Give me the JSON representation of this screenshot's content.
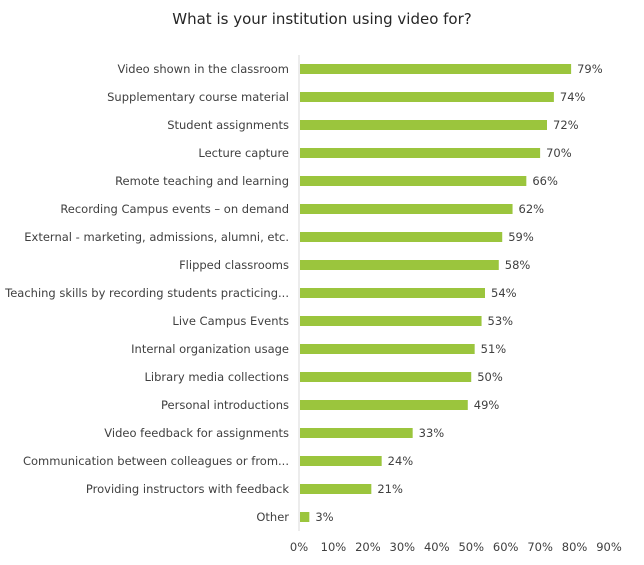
{
  "chart_data": {
    "type": "bar",
    "orientation": "horizontal",
    "title": "What is your institution using video for?",
    "categories": [
      "Video shown in the classroom",
      "Supplementary course material",
      "Student assignments",
      "Lecture capture",
      "Remote teaching and learning",
      "Recording Campus events – on demand",
      "External - marketing, admissions, alumni, etc.",
      "Flipped classrooms",
      "Teaching skills by recording students practicing...",
      "Live Campus Events",
      "Internal organization usage",
      "Library media collections",
      "Personal introductions",
      "Video feedback for assignments",
      "Communication between colleagues or from...",
      "Providing instructors with feedback",
      "Other"
    ],
    "values": [
      79,
      74,
      72,
      70,
      66,
      62,
      59,
      58,
      54,
      53,
      51,
      50,
      49,
      33,
      24,
      21,
      3
    ],
    "data_labels": [
      "79%",
      "74%",
      "72%",
      "70%",
      "66%",
      "62%",
      "59%",
      "58%",
      "54%",
      "53%",
      "51%",
      "50%",
      "49%",
      "33%",
      "24%",
      "21%",
      "3%"
    ],
    "xlim": [
      0,
      90
    ],
    "xticks": [
      0,
      10,
      20,
      30,
      40,
      50,
      60,
      70,
      80,
      90
    ],
    "xtick_labels": [
      "0%",
      "10%",
      "20%",
      "30%",
      "40%",
      "50%",
      "60%",
      "70%",
      "80%",
      "90%"
    ],
    "grid": false,
    "legend": "none",
    "bar_color": "#9BC53D"
  }
}
